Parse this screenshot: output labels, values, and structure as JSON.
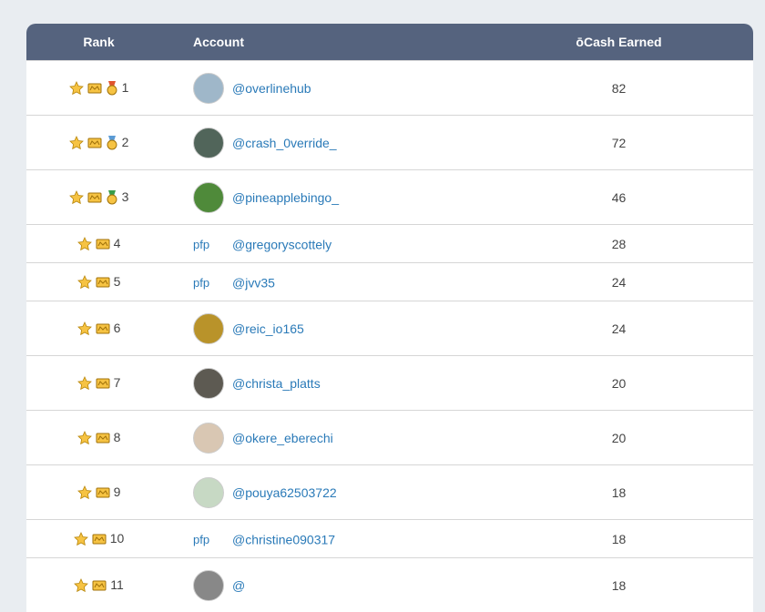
{
  "table": {
    "headers": [
      "Rank",
      "Account",
      "ōCash Earned"
    ],
    "rows": [
      {
        "rank": 1,
        "account": "@overlinehub",
        "earned": 82
      },
      {
        "rank": 2,
        "account": "@crash_0verride_",
        "earned": 72
      },
      {
        "rank": 3,
        "account": "@pineapplebingo_",
        "earned": 46
      },
      {
        "rank": 4,
        "avatar_alt": "pfp",
        "account": "@gregoryscottely",
        "earned": 28
      },
      {
        "rank": 5,
        "avatar_alt": "pfp",
        "account": "@jvv35",
        "earned": 24
      },
      {
        "rank": 6,
        "account": "@reic_io165",
        "earned": 24
      },
      {
        "rank": 7,
        "account": "@christa_platts",
        "earned": 20
      },
      {
        "rank": 8,
        "account": "@okere_eberechi",
        "earned": 20
      },
      {
        "rank": 9,
        "account": "@pouya62503722",
        "earned": 18
      },
      {
        "rank": 10,
        "avatar_alt": "pfp",
        "account": "@christine090317",
        "earned": 18
      },
      {
        "rank": 11,
        "account": "@",
        "earned": 18
      }
    ]
  }
}
